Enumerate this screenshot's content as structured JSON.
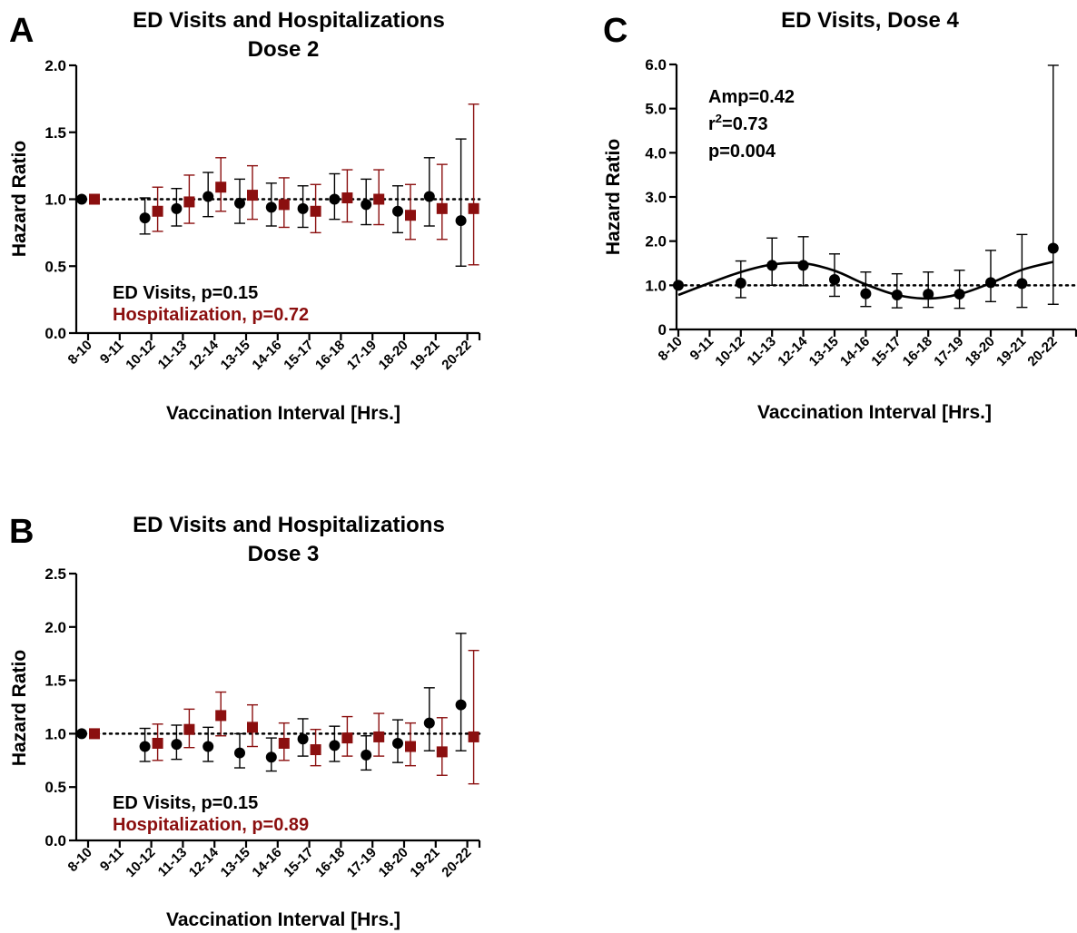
{
  "chart_data": [
    {
      "panel": "A",
      "type": "scatter",
      "title": [
        "ED Visits and Hospitalizations",
        "Dose 2"
      ],
      "xlabel": "Vaccination Interval [Hrs.]",
      "ylabel": "Hazard Ratio",
      "ylim": [
        0,
        2.0
      ],
      "yticks": [
        "0.0",
        "0.5",
        "1.0",
        "1.5",
        "2.0"
      ],
      "reference_line": 1.0,
      "categories": [
        "8-10",
        "9-11",
        "10-12",
        "11-13",
        "12-14",
        "13-15",
        "14-16",
        "15-17",
        "16-18",
        "17-19",
        "18-20",
        "19-21",
        "20-22"
      ],
      "series": [
        {
          "name": "ED Visits, p=0.15",
          "color": "#000000",
          "marker": "circle",
          "points": [
            {
              "category": "8-10",
              "y": 1.0,
              "lo": 1.0,
              "hi": 1.0
            },
            {
              "category": "10-12",
              "y": 0.86,
              "lo": 0.74,
              "hi": 1.01
            },
            {
              "category": "11-13",
              "y": 0.93,
              "lo": 0.8,
              "hi": 1.08
            },
            {
              "category": "12-14",
              "y": 1.02,
              "lo": 0.87,
              "hi": 1.2
            },
            {
              "category": "13-15",
              "y": 0.97,
              "lo": 0.82,
              "hi": 1.15
            },
            {
              "category": "14-16",
              "y": 0.94,
              "lo": 0.8,
              "hi": 1.12
            },
            {
              "category": "15-17",
              "y": 0.93,
              "lo": 0.79,
              "hi": 1.1
            },
            {
              "category": "16-18",
              "y": 1.0,
              "lo": 0.85,
              "hi": 1.19
            },
            {
              "category": "17-19",
              "y": 0.96,
              "lo": 0.81,
              "hi": 1.15
            },
            {
              "category": "18-20",
              "y": 0.91,
              "lo": 0.75,
              "hi": 1.1
            },
            {
              "category": "19-21",
              "y": 1.02,
              "lo": 0.8,
              "hi": 1.31
            },
            {
              "category": "20-22",
              "y": 0.84,
              "lo": 0.5,
              "hi": 1.45
            }
          ]
        },
        {
          "name": "Hospitalization, p=0.72",
          "color": "#8b0f0f",
          "marker": "square",
          "points": [
            {
              "category": "8-10",
              "y": 1.0,
              "lo": 1.0,
              "hi": 1.0
            },
            {
              "category": "10-12",
              "y": 0.91,
              "lo": 0.76,
              "hi": 1.09
            },
            {
              "category": "11-13",
              "y": 0.98,
              "lo": 0.82,
              "hi": 1.18
            },
            {
              "category": "12-14",
              "y": 1.09,
              "lo": 0.91,
              "hi": 1.31
            },
            {
              "category": "13-15",
              "y": 1.03,
              "lo": 0.85,
              "hi": 1.25
            },
            {
              "category": "14-16",
              "y": 0.96,
              "lo": 0.79,
              "hi": 1.16
            },
            {
              "category": "15-17",
              "y": 0.91,
              "lo": 0.75,
              "hi": 1.11
            },
            {
              "category": "16-18",
              "y": 1.01,
              "lo": 0.83,
              "hi": 1.22
            },
            {
              "category": "17-19",
              "y": 1.0,
              "lo": 0.81,
              "hi": 1.22
            },
            {
              "category": "18-20",
              "y": 0.88,
              "lo": 0.7,
              "hi": 1.11
            },
            {
              "category": "19-21",
              "y": 0.93,
              "lo": 0.7,
              "hi": 1.26
            },
            {
              "category": "20-22",
              "y": 0.93,
              "lo": 0.51,
              "hi": 1.71
            }
          ]
        }
      ],
      "annotations": [
        {
          "text": "ED Visits, p=0.15",
          "color": "#000000"
        },
        {
          "text": "Hospitalization, p=0.72",
          "color": "#8b0f0f"
        }
      ]
    },
    {
      "panel": "B",
      "type": "scatter",
      "title": [
        "ED Visits and Hospitalizations",
        "Dose 3"
      ],
      "xlabel": "Vaccination Interval [Hrs.]",
      "ylabel": "Hazard Ratio",
      "ylim": [
        0,
        2.5
      ],
      "yticks": [
        "0.0",
        "0.5",
        "1.0",
        "1.5",
        "2.0",
        "2.5"
      ],
      "reference_line": 1.0,
      "categories": [
        "8-10",
        "9-11",
        "10-12",
        "11-13",
        "12-14",
        "13-15",
        "14-16",
        "15-17",
        "16-18",
        "17-19",
        "18-20",
        "19-21",
        "20-22"
      ],
      "series": [
        {
          "name": "ED Visits, p=0.15",
          "color": "#000000",
          "marker": "circle",
          "points": [
            {
              "category": "8-10",
              "y": 1.0,
              "lo": 1.0,
              "hi": 1.0
            },
            {
              "category": "10-12",
              "y": 0.88,
              "lo": 0.74,
              "hi": 1.05
            },
            {
              "category": "11-13",
              "y": 0.9,
              "lo": 0.76,
              "hi": 1.08
            },
            {
              "category": "12-14",
              "y": 0.88,
              "lo": 0.74,
              "hi": 1.06
            },
            {
              "category": "13-15",
              "y": 0.82,
              "lo": 0.68,
              "hi": 1.0
            },
            {
              "category": "14-16",
              "y": 0.78,
              "lo": 0.65,
              "hi": 0.96
            },
            {
              "category": "15-17",
              "y": 0.95,
              "lo": 0.79,
              "hi": 1.14
            },
            {
              "category": "16-18",
              "y": 0.89,
              "lo": 0.74,
              "hi": 1.07
            },
            {
              "category": "17-19",
              "y": 0.8,
              "lo": 0.66,
              "hi": 0.98
            },
            {
              "category": "18-20",
              "y": 0.91,
              "lo": 0.73,
              "hi": 1.13
            },
            {
              "category": "19-21",
              "y": 1.1,
              "lo": 0.84,
              "hi": 1.43
            },
            {
              "category": "20-22",
              "y": 1.27,
              "lo": 0.84,
              "hi": 1.94
            }
          ]
        },
        {
          "name": "Hospitalization, p=0.89",
          "color": "#8b0f0f",
          "marker": "square",
          "points": [
            {
              "category": "8-10",
              "y": 1.0,
              "lo": 1.0,
              "hi": 1.0
            },
            {
              "category": "10-12",
              "y": 0.91,
              "lo": 0.75,
              "hi": 1.09
            },
            {
              "category": "11-13",
              "y": 1.04,
              "lo": 0.87,
              "hi": 1.23
            },
            {
              "category": "12-14",
              "y": 1.17,
              "lo": 0.98,
              "hi": 1.39
            },
            {
              "category": "13-15",
              "y": 1.06,
              "lo": 0.88,
              "hi": 1.27
            },
            {
              "category": "14-16",
              "y": 0.91,
              "lo": 0.75,
              "hi": 1.1
            },
            {
              "category": "15-17",
              "y": 0.85,
              "lo": 0.7,
              "hi": 1.04
            },
            {
              "category": "16-18",
              "y": 0.96,
              "lo": 0.79,
              "hi": 1.16
            },
            {
              "category": "17-19",
              "y": 0.97,
              "lo": 0.79,
              "hi": 1.19
            },
            {
              "category": "18-20",
              "y": 0.88,
              "lo": 0.7,
              "hi": 1.1
            },
            {
              "category": "19-21",
              "y": 0.83,
              "lo": 0.61,
              "hi": 1.15
            },
            {
              "category": "20-22",
              "y": 0.97,
              "lo": 0.53,
              "hi": 1.78
            }
          ]
        }
      ],
      "annotations": [
        {
          "text": "ED Visits, p=0.15",
          "color": "#000000"
        },
        {
          "text": "Hospitalization, p=0.89",
          "color": "#8b0f0f"
        }
      ]
    },
    {
      "panel": "C",
      "type": "scatter",
      "title": [
        "ED Visits, Dose 4"
      ],
      "xlabel": "Vaccination Interval [Hrs.]",
      "ylabel": "Hazard Ratio",
      "ylim": [
        0,
        6.0
      ],
      "yticks": [
        "0",
        "1.0",
        "2.0",
        "3.0",
        "4.0",
        "5.0",
        "6.0"
      ],
      "reference_line": 1.0,
      "categories": [
        "8-10",
        "9-11",
        "10-12",
        "11-13",
        "12-14",
        "13-15",
        "14-16",
        "15-17",
        "16-18",
        "17-19",
        "18-20",
        "19-21",
        "20-22"
      ],
      "series": [
        {
          "name": "ED Visits",
          "color": "#000000",
          "marker": "circle",
          "points": [
            {
              "category": "8-10",
              "y": 1.0,
              "lo": 1.0,
              "hi": 1.0
            },
            {
              "category": "10-12",
              "y": 1.05,
              "lo": 0.72,
              "hi": 1.55
            },
            {
              "category": "11-13",
              "y": 1.45,
              "lo": 1.0,
              "hi": 2.07
            },
            {
              "category": "12-14",
              "y": 1.45,
              "lo": 0.99,
              "hi": 2.1
            },
            {
              "category": "13-15",
              "y": 1.13,
              "lo": 0.75,
              "hi": 1.71
            },
            {
              "category": "14-16",
              "y": 0.81,
              "lo": 0.52,
              "hi": 1.3
            },
            {
              "category": "15-17",
              "y": 0.78,
              "lo": 0.49,
              "hi": 1.26
            },
            {
              "category": "16-18",
              "y": 0.8,
              "lo": 0.5,
              "hi": 1.3
            },
            {
              "category": "17-19",
              "y": 0.8,
              "lo": 0.48,
              "hi": 1.34
            },
            {
              "category": "18-20",
              "y": 1.06,
              "lo": 0.63,
              "hi": 1.79
            },
            {
              "category": "19-21",
              "y": 1.04,
              "lo": 0.5,
              "hi": 2.15
            },
            {
              "category": "20-22",
              "y": 1.84,
              "lo": 0.57,
              "hi": 5.98
            }
          ]
        }
      ],
      "fit_curve": {
        "type": "cosinor",
        "points": [
          {
            "x": "8-10",
            "y": 0.78
          },
          {
            "x": "9-11",
            "y": 1.05
          },
          {
            "x": "10-12",
            "y": 1.3
          },
          {
            "x": "11-13",
            "y": 1.47
          },
          {
            "x": "12-14",
            "y": 1.5
          },
          {
            "x": "13-15",
            "y": 1.33
          },
          {
            "x": "14-16",
            "y": 1.02
          },
          {
            "x": "15-17",
            "y": 0.78
          },
          {
            "x": "16-18",
            "y": 0.7
          },
          {
            "x": "17-19",
            "y": 0.8
          },
          {
            "x": "18-20",
            "y": 1.05
          },
          {
            "x": "19-21",
            "y": 1.35
          },
          {
            "x": "20-22",
            "y": 1.53
          }
        ]
      },
      "annotations": [
        {
          "text": "Amp=0.42"
        },
        {
          "text": "r²=0.73",
          "base": "r",
          "sup": "2",
          "rest": "=0.73"
        },
        {
          "text": "p=0.004"
        }
      ]
    }
  ]
}
